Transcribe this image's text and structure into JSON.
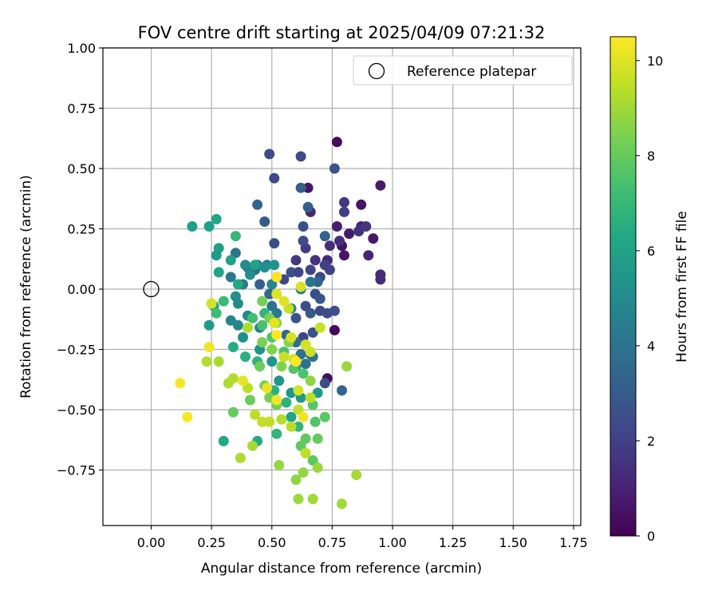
{
  "chart_data": {
    "type": "scatter",
    "title": "FOV centre drift starting at 2025/04/09 07:21:32",
    "xlabel": "Angular distance from reference (arcmin)",
    "ylabel": "Rotation from reference (arcmin)",
    "xlim": [
      -0.2,
      1.78
    ],
    "ylim": [
      -0.98,
      1.0
    ],
    "xticks": [
      0.0,
      0.25,
      0.5,
      0.75,
      1.0,
      1.25,
      1.5,
      1.75
    ],
    "xtick_labels": [
      "0.00",
      "0.25",
      "0.50",
      "0.75",
      "1.00",
      "1.25",
      "1.50",
      "1.75"
    ],
    "yticks": [
      -0.75,
      -0.5,
      -0.25,
      0.0,
      0.25,
      0.5,
      0.75,
      1.0
    ],
    "ytick_labels": [
      "−0.75",
      "−0.50",
      "−0.25",
      "0.00",
      "0.25",
      "0.50",
      "0.75",
      "1.00"
    ],
    "grid": true,
    "legend": {
      "placement": "top-right",
      "entries": [
        {
          "label": "Reference platepar",
          "marker": "open-circle",
          "x": 0.0,
          "y": 0.0
        }
      ]
    },
    "colorbar": {
      "label": "Hours from first FF file",
      "colormap": "viridis",
      "range": [
        0,
        10.5
      ],
      "ticks": [
        0,
        2,
        4,
        6,
        8,
        10
      ],
      "tick_labels": [
        "0",
        "2",
        "4",
        "6",
        "8",
        "10"
      ]
    },
    "points": [
      {
        "x": 0.77,
        "y": 0.61,
        "h": 0.3
      },
      {
        "x": 0.76,
        "y": -0.17,
        "h": 0.2
      },
      {
        "x": 0.73,
        "y": -0.37,
        "h": 0.4
      },
      {
        "x": 0.65,
        "y": 0.42,
        "h": 0.6
      },
      {
        "x": 0.87,
        "y": 0.35,
        "h": 0.6
      },
      {
        "x": 0.95,
        "y": 0.43,
        "h": 0.8
      },
      {
        "x": 0.92,
        "y": 0.21,
        "h": 0.7
      },
      {
        "x": 0.79,
        "y": 0.18,
        "h": 0.5
      },
      {
        "x": 0.8,
        "y": 0.14,
        "h": 0.6
      },
      {
        "x": 0.82,
        "y": 0.23,
        "h": 0.8
      },
      {
        "x": 0.77,
        "y": 0.26,
        "h": 0.9
      },
      {
        "x": 0.87,
        "y": 0.26,
        "h": 1.0
      },
      {
        "x": 0.9,
        "y": 0.14,
        "h": 1.1
      },
      {
        "x": 0.95,
        "y": 0.06,
        "h": 1.2
      },
      {
        "x": 0.95,
        "y": 0.04,
        "h": 1.3
      },
      {
        "x": 0.78,
        "y": 0.2,
        "h": 1.4
      },
      {
        "x": 0.73,
        "y": 0.12,
        "h": 1.2
      },
      {
        "x": 0.74,
        "y": 0.18,
        "h": 1.3
      },
      {
        "x": 0.89,
        "y": 0.26,
        "h": 1.6
      },
      {
        "x": 0.86,
        "y": 0.24,
        "h": 1.5
      },
      {
        "x": 0.8,
        "y": 0.36,
        "h": 1.7
      },
      {
        "x": 0.8,
        "y": 0.32,
        "h": 1.9
      },
      {
        "x": 0.66,
        "y": 0.32,
        "h": 1.1
      },
      {
        "x": 0.6,
        "y": 0.12,
        "h": 1.7
      },
      {
        "x": 0.64,
        "y": 0.17,
        "h": 1.8
      },
      {
        "x": 0.68,
        "y": 0.12,
        "h": 1.5
      },
      {
        "x": 0.74,
        "y": 0.08,
        "h": 2.0
      },
      {
        "x": 0.66,
        "y": 0.08,
        "h": 2.1
      },
      {
        "x": 0.7,
        "y": 0.05,
        "h": 2.2
      },
      {
        "x": 0.72,
        "y": 0.1,
        "h": 2.0
      },
      {
        "x": 0.62,
        "y": 0.55,
        "h": 2.3
      },
      {
        "x": 0.49,
        "y": 0.56,
        "h": 2.4
      },
      {
        "x": 0.51,
        "y": 0.46,
        "h": 2.2
      },
      {
        "x": 0.76,
        "y": 0.5,
        "h": 2.7
      },
      {
        "x": 0.63,
        "y": 0.26,
        "h": 2.6
      },
      {
        "x": 0.63,
        "y": 0.2,
        "h": 2.4
      },
      {
        "x": 0.51,
        "y": 0.19,
        "h": 2.5
      },
      {
        "x": 0.47,
        "y": 0.28,
        "h": 2.9
      },
      {
        "x": 0.55,
        "y": 0.04,
        "h": 2.3
      },
      {
        "x": 0.52,
        "y": 0.05,
        "h": 2.4
      },
      {
        "x": 0.58,
        "y": 0.07,
        "h": 2.6
      },
      {
        "x": 0.61,
        "y": 0.07,
        "h": 2.2
      },
      {
        "x": 0.68,
        "y": -0.02,
        "h": 2.5
      },
      {
        "x": 0.7,
        "y": -0.09,
        "h": 2.3
      },
      {
        "x": 0.73,
        "y": -0.1,
        "h": 2.4
      },
      {
        "x": 0.76,
        "y": -0.09,
        "h": 2.6
      },
      {
        "x": 0.7,
        "y": -0.04,
        "h": 2.8
      },
      {
        "x": 0.66,
        "y": -0.1,
        "h": 2.9
      },
      {
        "x": 0.64,
        "y": -0.07,
        "h": 2.5
      },
      {
        "x": 0.6,
        "y": -0.12,
        "h": 2.7
      },
      {
        "x": 0.63,
        "y": -0.2,
        "h": 2.2
      },
      {
        "x": 0.67,
        "y": -0.18,
        "h": 2.6
      },
      {
        "x": 0.72,
        "y": -0.39,
        "h": 2.5
      },
      {
        "x": 0.66,
        "y": -0.27,
        "h": 3.0
      },
      {
        "x": 0.62,
        "y": 0.42,
        "h": 3.1
      },
      {
        "x": 0.65,
        "y": 0.34,
        "h": 3.2
      },
      {
        "x": 0.72,
        "y": 0.22,
        "h": 3.3
      },
      {
        "x": 0.44,
        "y": 0.35,
        "h": 3.4
      },
      {
        "x": 0.69,
        "y": 0.03,
        "h": 3.5
      },
      {
        "x": 0.79,
        "y": -0.42,
        "h": 3.5
      },
      {
        "x": 0.45,
        "y": 0.02,
        "h": 3.1
      },
      {
        "x": 0.49,
        "y": -0.02,
        "h": 3.6
      },
      {
        "x": 0.43,
        "y": 0.08,
        "h": 3.7
      },
      {
        "x": 0.5,
        "y": -0.07,
        "h": 3.9
      },
      {
        "x": 0.56,
        "y": -0.19,
        "h": 3.5
      },
      {
        "x": 0.6,
        "y": -0.22,
        "h": 3.8
      },
      {
        "x": 0.62,
        "y": -0.27,
        "h": 4.0
      },
      {
        "x": 0.67,
        "y": -0.28,
        "h": 4.1
      },
      {
        "x": 0.64,
        "y": -0.31,
        "h": 3.9
      },
      {
        "x": 0.66,
        "y": 0.03,
        "h": 4.0
      },
      {
        "x": 0.35,
        "y": 0.15,
        "h": 4.1
      },
      {
        "x": 0.33,
        "y": 0.05,
        "h": 4.2
      },
      {
        "x": 0.38,
        "y": 0.02,
        "h": 4.3
      },
      {
        "x": 0.4,
        "y": 0.09,
        "h": 4.1
      },
      {
        "x": 0.44,
        "y": 0.1,
        "h": 4.4
      },
      {
        "x": 0.48,
        "y": 0.1,
        "h": 4.5
      },
      {
        "x": 0.52,
        "y": -0.1,
        "h": 4.3
      },
      {
        "x": 0.58,
        "y": -0.08,
        "h": 4.6
      },
      {
        "x": 0.62,
        "y": 0.0,
        "h": 4.4
      },
      {
        "x": 0.5,
        "y": 0.02,
        "h": 4.7
      },
      {
        "x": 0.33,
        "y": -0.13,
        "h": 4.7
      },
      {
        "x": 0.36,
        "y": -0.15,
        "h": 4.8
      },
      {
        "x": 0.4,
        "y": -0.11,
        "h": 4.9
      },
      {
        "x": 0.45,
        "y": -0.16,
        "h": 4.6
      },
      {
        "x": 0.39,
        "y": 0.1,
        "h": 5.0
      },
      {
        "x": 0.41,
        "y": 0.06,
        "h": 5.1
      },
      {
        "x": 0.47,
        "y": 0.09,
        "h": 5.2
      },
      {
        "x": 0.51,
        "y": 0.1,
        "h": 5.3
      },
      {
        "x": 0.36,
        "y": -0.06,
        "h": 5.0
      },
      {
        "x": 0.35,
        "y": -0.03,
        "h": 5.1
      },
      {
        "x": 0.38,
        "y": -0.2,
        "h": 5.2
      },
      {
        "x": 0.45,
        "y": -0.25,
        "h": 5.3
      },
      {
        "x": 0.5,
        "y": -0.3,
        "h": 5.4
      },
      {
        "x": 0.53,
        "y": -0.38,
        "h": 5.5
      },
      {
        "x": 0.58,
        "y": -0.43,
        "h": 5.4
      },
      {
        "x": 0.62,
        "y": -0.45,
        "h": 5.5
      },
      {
        "x": 0.69,
        "y": -0.43,
        "h": 5.6
      },
      {
        "x": 0.6,
        "y": -0.32,
        "h": 5.6
      },
      {
        "x": 0.24,
        "y": -0.15,
        "h": 5.7
      },
      {
        "x": 0.24,
        "y": 0.26,
        "h": 5.9
      },
      {
        "x": 0.17,
        "y": 0.26,
        "h": 5.8
      },
      {
        "x": 0.28,
        "y": 0.17,
        "h": 5.8
      },
      {
        "x": 0.27,
        "y": 0.14,
        "h": 5.7
      },
      {
        "x": 0.28,
        "y": 0.07,
        "h": 6.1
      },
      {
        "x": 0.33,
        "y": 0.12,
        "h": 6.0
      },
      {
        "x": 0.27,
        "y": 0.29,
        "h": 6.2
      },
      {
        "x": 0.36,
        "y": 0.02,
        "h": 6.3
      },
      {
        "x": 0.43,
        "y": 0.1,
        "h": 6.0
      },
      {
        "x": 0.3,
        "y": -0.63,
        "h": 6.3
      },
      {
        "x": 0.44,
        "y": -0.63,
        "h": 6.4
      },
      {
        "x": 0.58,
        "y": -0.53,
        "h": 6.1
      },
      {
        "x": 0.26,
        "y": -0.07,
        "h": 6.2
      },
      {
        "x": 0.34,
        "y": -0.24,
        "h": 6.5
      },
      {
        "x": 0.39,
        "y": -0.28,
        "h": 6.6
      },
      {
        "x": 0.44,
        "y": -0.3,
        "h": 6.7
      },
      {
        "x": 0.47,
        "y": -0.1,
        "h": 6.8
      },
      {
        "x": 0.51,
        "y": -0.42,
        "h": 6.6
      },
      {
        "x": 0.56,
        "y": -0.47,
        "h": 6.7
      },
      {
        "x": 0.61,
        "y": -0.57,
        "h": 6.9
      },
      {
        "x": 0.52,
        "y": -0.6,
        "h": 6.8
      },
      {
        "x": 0.35,
        "y": 0.22,
        "h": 7.0
      },
      {
        "x": 0.3,
        "y": -0.05,
        "h": 7.1
      },
      {
        "x": 0.27,
        "y": -0.1,
        "h": 7.2
      },
      {
        "x": 0.42,
        "y": -0.12,
        "h": 7.3
      },
      {
        "x": 0.46,
        "y": -0.15,
        "h": 7.4
      },
      {
        "x": 0.5,
        "y": -0.2,
        "h": 7.5
      },
      {
        "x": 0.55,
        "y": -0.26,
        "h": 7.4
      },
      {
        "x": 0.59,
        "y": -0.33,
        "h": 7.6
      },
      {
        "x": 0.63,
        "y": -0.35,
        "h": 7.5
      },
      {
        "x": 0.67,
        "y": -0.48,
        "h": 7.7
      },
      {
        "x": 0.72,
        "y": -0.53,
        "h": 7.8
      },
      {
        "x": 0.68,
        "y": -0.55,
        "h": 7.6
      },
      {
        "x": 0.62,
        "y": -0.65,
        "h": 7.9
      },
      {
        "x": 0.69,
        "y": -0.62,
        "h": 8.0
      },
      {
        "x": 0.67,
        "y": -0.71,
        "h": 7.8
      },
      {
        "x": 0.64,
        "y": -0.62,
        "h": 7.9
      },
      {
        "x": 0.34,
        "y": -0.51,
        "h": 8.0
      },
      {
        "x": 0.41,
        "y": -0.46,
        "h": 8.1
      },
      {
        "x": 0.45,
        "y": -0.32,
        "h": 8.1
      },
      {
        "x": 0.47,
        "y": -0.4,
        "h": 8.2
      },
      {
        "x": 0.49,
        "y": -0.45,
        "h": 8.3
      },
      {
        "x": 0.52,
        "y": -0.48,
        "h": 8.2
      },
      {
        "x": 0.46,
        "y": -0.22,
        "h": 8.4
      },
      {
        "x": 0.5,
        "y": -0.25,
        "h": 8.5
      },
      {
        "x": 0.46,
        "y": -0.05,
        "h": 8.3
      },
      {
        "x": 0.49,
        "y": -0.12,
        "h": 8.4
      },
      {
        "x": 0.52,
        "y": -0.14,
        "h": 8.6
      },
      {
        "x": 0.54,
        "y": -0.32,
        "h": 8.5
      },
      {
        "x": 0.57,
        "y": -0.22,
        "h": 8.6
      },
      {
        "x": 0.66,
        "y": -0.38,
        "h": 8.7
      },
      {
        "x": 0.53,
        "y": -0.73,
        "h": 8.8
      },
      {
        "x": 0.6,
        "y": -0.79,
        "h": 8.7
      },
      {
        "x": 0.63,
        "y": -0.76,
        "h": 8.8
      },
      {
        "x": 0.69,
        "y": -0.74,
        "h": 8.9
      },
      {
        "x": 0.61,
        "y": -0.87,
        "h": 8.9
      },
      {
        "x": 0.67,
        "y": -0.87,
        "h": 9.0
      },
      {
        "x": 0.79,
        "y": -0.89,
        "h": 9.0
      },
      {
        "x": 0.81,
        "y": -0.32,
        "h": 8.9
      },
      {
        "x": 0.85,
        "y": -0.77,
        "h": 9.1
      },
      {
        "x": 0.42,
        "y": -0.65,
        "h": 9.1
      },
      {
        "x": 0.37,
        "y": -0.7,
        "h": 9.2
      },
      {
        "x": 0.32,
        "y": -0.39,
        "h": 9.2
      },
      {
        "x": 0.28,
        "y": -0.3,
        "h": 9.1
      },
      {
        "x": 0.23,
        "y": -0.3,
        "h": 9.3
      },
      {
        "x": 0.34,
        "y": -0.37,
        "h": 9.3
      },
      {
        "x": 0.4,
        "y": -0.41,
        "h": 9.4
      },
      {
        "x": 0.43,
        "y": -0.52,
        "h": 9.4
      },
      {
        "x": 0.46,
        "y": -0.55,
        "h": 9.5
      },
      {
        "x": 0.49,
        "y": -0.55,
        "h": 9.5
      },
      {
        "x": 0.4,
        "y": -0.16,
        "h": 9.2
      },
      {
        "x": 0.54,
        "y": -0.54,
        "h": 9.3
      },
      {
        "x": 0.58,
        "y": -0.57,
        "h": 9.4
      },
      {
        "x": 0.61,
        "y": -0.5,
        "h": 9.5
      },
      {
        "x": 0.66,
        "y": -0.45,
        "h": 9.4
      },
      {
        "x": 0.64,
        "y": -0.68,
        "h": 9.5
      },
      {
        "x": 0.57,
        "y": -0.08,
        "h": 9.6
      },
      {
        "x": 0.55,
        "y": -0.28,
        "h": 9.6
      },
      {
        "x": 0.66,
        "y": -0.26,
        "h": 9.7
      },
      {
        "x": 0.7,
        "y": -0.16,
        "h": 9.6
      },
      {
        "x": 0.64,
        "y": -0.23,
        "h": 9.8
      },
      {
        "x": 0.59,
        "y": -0.29,
        "h": 9.7
      },
      {
        "x": 0.61,
        "y": -0.42,
        "h": 9.8
      },
      {
        "x": 0.58,
        "y": -0.2,
        "h": 9.9
      },
      {
        "x": 0.62,
        "y": 0.01,
        "h": 9.9
      },
      {
        "x": 0.52,
        "y": -0.02,
        "h": 10.0
      },
      {
        "x": 0.55,
        "y": -0.05,
        "h": 10.0
      },
      {
        "x": 0.51,
        "y": -0.14,
        "h": 10.1
      },
      {
        "x": 0.25,
        "y": -0.06,
        "h": 9.8
      },
      {
        "x": 0.38,
        "y": -0.38,
        "h": 10.1
      },
      {
        "x": 0.48,
        "y": -0.41,
        "h": 10.2
      },
      {
        "x": 0.24,
        "y": -0.24,
        "h": 10.3
      },
      {
        "x": 0.12,
        "y": -0.39,
        "h": 10.4
      },
      {
        "x": 0.15,
        "y": -0.53,
        "h": 10.4
      },
      {
        "x": 0.52,
        "y": 0.05,
        "h": 10.4
      },
      {
        "x": 0.52,
        "y": -0.19,
        "h": 10.5
      },
      {
        "x": 0.6,
        "y": -0.3,
        "h": 10.5
      },
      {
        "x": 0.63,
        "y": -0.53,
        "h": 10.3
      },
      {
        "x": 0.52,
        "y": -0.46,
        "h": 10.3
      }
    ]
  }
}
